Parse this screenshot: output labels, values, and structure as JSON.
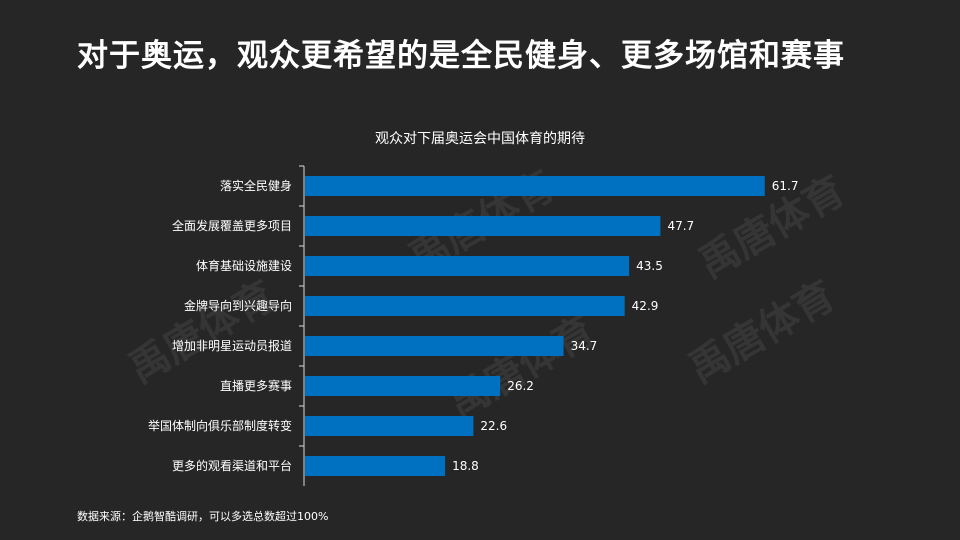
{
  "title": "对于奥运，观众更希望的是全民健身、更多场馆和赛事",
  "source": "数据来源：企鹅智酷调研，可以多选总数超过100%",
  "watermark": "禹唐体育",
  "colors": {
    "background": "#262626",
    "bar": "#0070c0",
    "text": "#ffffff"
  },
  "chart_data": {
    "type": "bar",
    "orientation": "horizontal",
    "title": "观众对下届奥运会中国体育的期待",
    "categories": [
      "落实全民健身",
      "全面发展覆盖更多项目",
      "体育基础设施建设",
      "金牌导向到兴趣导向",
      "增加非明星运动员报道",
      "直播更多赛事",
      "举国体制向俱乐部制度转变",
      "更多的观看渠道和平台"
    ],
    "values": [
      61.7,
      47.7,
      43.5,
      42.9,
      34.7,
      26.2,
      22.6,
      18.8
    ],
    "xlim": [
      0,
      62
    ]
  }
}
